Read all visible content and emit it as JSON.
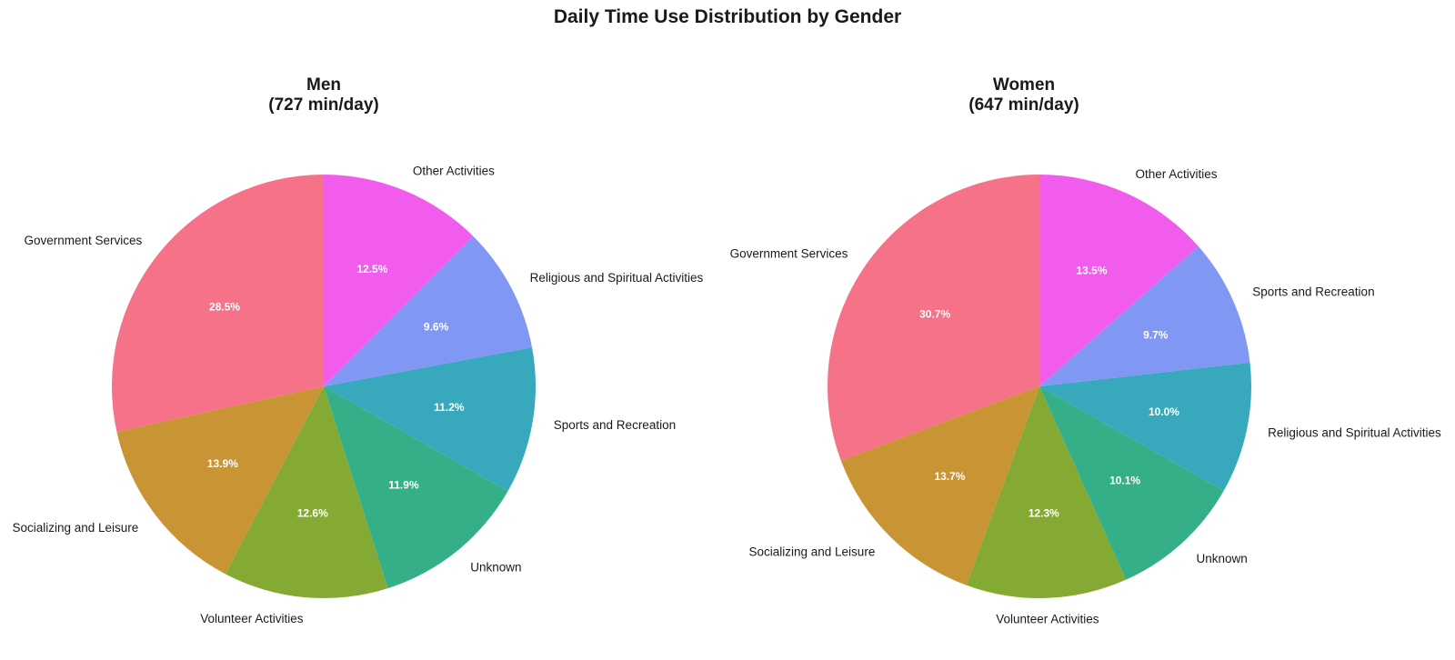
{
  "figure": {
    "title": "Daily Time Use Distribution by Gender"
  },
  "chart_data": [
    {
      "type": "pie",
      "title": "Men",
      "subtitle": "(727 min/day)",
      "start": "top",
      "direction": "counterclockwise",
      "slices": [
        {
          "label": "Government Services",
          "value": 28.5,
          "pct_label": "28.5%",
          "color": "#f57288"
        },
        {
          "label": "Socializing and Leisure",
          "value": 13.9,
          "pct_label": "13.9%",
          "color": "#c89434"
        },
        {
          "label": "Volunteer Activities",
          "value": 12.6,
          "pct_label": "12.6%",
          "color": "#85aa34"
        },
        {
          "label": "Unknown",
          "value": 11.9,
          "pct_label": "11.9%",
          "color": "#35af87"
        },
        {
          "label": "Sports and Recreation",
          "value": 11.2,
          "pct_label": "11.2%",
          "color": "#38a8bd"
        },
        {
          "label": "Religious and Spiritual Activities",
          "value": 9.6,
          "pct_label": "9.6%",
          "color": "#8197f4"
        },
        {
          "label": "Other Activities",
          "value": 12.5,
          "pct_label": "12.5%",
          "color": "#f25ced"
        }
      ]
    },
    {
      "type": "pie",
      "title": "Women",
      "subtitle": "(647 min/day)",
      "start": "top",
      "direction": "counterclockwise",
      "slices": [
        {
          "label": "Government Services",
          "value": 30.7,
          "pct_label": "30.7%",
          "color": "#f57288"
        },
        {
          "label": "Socializing and Leisure",
          "value": 13.7,
          "pct_label": "13.7%",
          "color": "#c89434"
        },
        {
          "label": "Volunteer Activities",
          "value": 12.3,
          "pct_label": "12.3%",
          "color": "#85aa34"
        },
        {
          "label": "Unknown",
          "value": 10.1,
          "pct_label": "10.1%",
          "color": "#35af87"
        },
        {
          "label": "Religious and Spiritual Activities",
          "value": 10.0,
          "pct_label": "10.0%",
          "color": "#38a8bd"
        },
        {
          "label": "Sports and Recreation",
          "value": 9.7,
          "pct_label": "9.7%",
          "color": "#8197f4"
        },
        {
          "label": "Other Activities",
          "value": 13.5,
          "pct_label": "13.5%",
          "color": "#f25ced"
        }
      ]
    }
  ]
}
